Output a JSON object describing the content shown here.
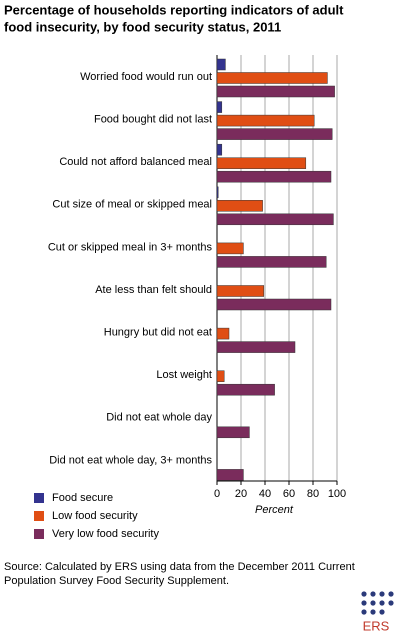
{
  "chart_data": {
    "type": "hbar",
    "title": [
      "Percentage of households reporting indicators of adult",
      "food insecurity, by food security status, 2011"
    ],
    "categories": [
      "Worried food would run out",
      "Food bought did not last",
      "Could not afford balanced meal",
      "Cut size of meal or skipped meal",
      "Cut or skipped meal in 3+ months",
      "Ate less than felt should",
      "Hungry but did not eat",
      "Lost weight",
      "Did not eat whole day",
      "Did not eat whole day, 3+ months"
    ],
    "series": [
      {
        "name": "Food secure",
        "color": "#33338f",
        "values": [
          7,
          4,
          4,
          1,
          0,
          0,
          0,
          0,
          0,
          0
        ]
      },
      {
        "name": "Low food security",
        "color": "#e04e14",
        "values": [
          92,
          81,
          74,
          38,
          22,
          39,
          10,
          6,
          0,
          0
        ]
      },
      {
        "name": "Very low food security",
        "color": "#7a2c5c",
        "values": [
          98,
          96,
          95,
          97,
          91,
          95,
          65,
          48,
          27,
          22
        ]
      }
    ],
    "xlabel": "Percent",
    "xlim": [
      0,
      100
    ],
    "xticks": [
      0,
      20,
      40,
      60,
      80,
      100
    ],
    "grid": true,
    "source": [
      "Source: Calculated by ERS using data from the December 2011 Current",
      "Population Survey Food Security Supplement."
    ],
    "logo": "ERS"
  }
}
